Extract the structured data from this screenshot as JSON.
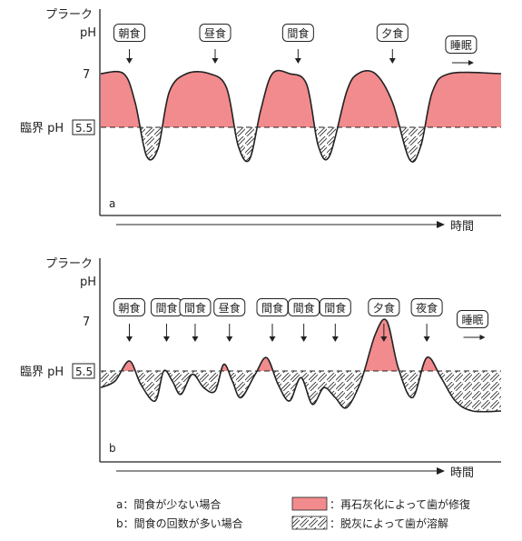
{
  "chart_data": [
    {
      "type": "line",
      "panel": "a",
      "ylabel": "プラーク pH",
      "xlabel": "時間",
      "critical_label": "臨界 pH",
      "critical_value": "5.5",
      "y_tick": "7",
      "events": [
        {
          "label": "朝食",
          "time": 1.0
        },
        {
          "label": "昼食",
          "time": 4.0
        },
        {
          "label": "間食",
          "time": 6.9
        },
        {
          "label": "夕食",
          "time": 10.2
        },
        {
          "label": "睡眠",
          "time": 12.6
        }
      ],
      "x": [
        0,
        0.8,
        1.2,
        1.6,
        2.0,
        2.4,
        3.0,
        3.8,
        4.4,
        4.8,
        5.2,
        5.6,
        6.0,
        6.6,
        7.2,
        7.6,
        8.0,
        8.6,
        9.0,
        9.6,
        10.2,
        10.8,
        11.2,
        11.6,
        12.2,
        14.0
      ],
      "values": [
        7.0,
        7.0,
        6.2,
        4.7,
        4.9,
        6.5,
        7.0,
        7.0,
        6.6,
        5.0,
        4.6,
        6.0,
        7.0,
        7.0,
        6.7,
        5.0,
        4.7,
        6.5,
        7.0,
        7.0,
        6.2,
        4.6,
        5.0,
        6.5,
        7.0,
        7.0
      ],
      "ylim": [
        3.8,
        8.0
      ],
      "xlim": [
        0,
        14
      ]
    },
    {
      "type": "line",
      "panel": "b",
      "ylabel": "プラーク pH",
      "xlabel": "時間",
      "critical_label": "臨界 pH",
      "critical_value": "5.5",
      "y_tick": "7",
      "events": [
        {
          "label": "朝食",
          "time": 1.0
        },
        {
          "label": "間食",
          "time": 2.3
        },
        {
          "label": "間食",
          "time": 3.3
        },
        {
          "label": "昼食",
          "time": 4.5
        },
        {
          "label": "間食",
          "time": 6.0
        },
        {
          "label": "間食",
          "time": 7.1
        },
        {
          "label": "間食",
          "time": 8.2
        },
        {
          "label": "夕食",
          "time": 9.9
        },
        {
          "label": "夜食",
          "time": 11.4
        },
        {
          "label": "睡眠",
          "time": 13.0
        }
      ],
      "x": [
        0,
        0.5,
        1.0,
        1.4,
        1.9,
        2.2,
        2.5,
        2.8,
        3.2,
        3.6,
        4.0,
        4.3,
        4.6,
        4.9,
        5.4,
        5.8,
        6.2,
        6.6,
        7.0,
        7.4,
        7.8,
        8.2,
        8.6,
        9.1,
        9.6,
        10.0,
        10.4,
        10.9,
        11.4,
        11.9,
        12.4,
        13.0,
        14.0
      ],
      "values": [
        5.0,
        5.2,
        5.8,
        5.1,
        4.6,
        5.5,
        5.2,
        4.8,
        5.4,
        5.0,
        4.9,
        5.7,
        5.2,
        4.7,
        5.4,
        5.9,
        5.1,
        4.6,
        5.3,
        4.5,
        5.0,
        4.7,
        4.4,
        5.2,
        6.6,
        7.0,
        5.6,
        4.7,
        5.9,
        5.3,
        4.6,
        4.3,
        4.3
      ],
      "ylim": [
        3.8,
        8.0
      ],
      "xlim": [
        0,
        14
      ]
    }
  ],
  "legend": {
    "a_desc": "a：間食が少ない場合",
    "b_desc": "b：間食の回数が多い場合",
    "remin": "：再石灰化によって歯が修復",
    "demin": "：脱灰によって歯が溶解"
  },
  "colors": {
    "remineralization": "#f28b8d",
    "line": "#222222"
  }
}
